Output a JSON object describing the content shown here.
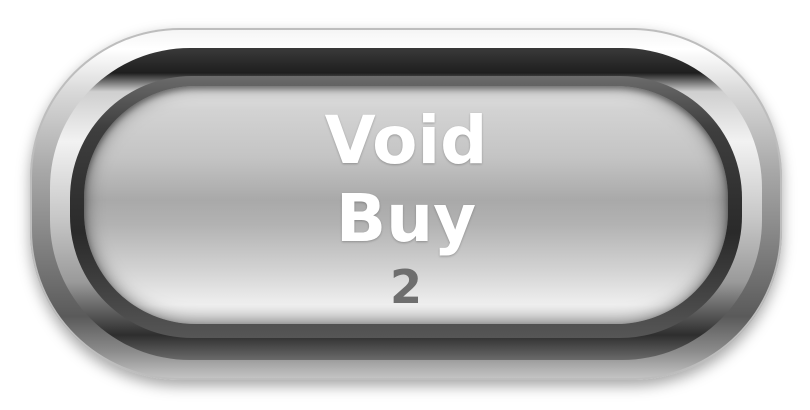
{
  "button": {
    "line1": "Void",
    "line2": "Buy",
    "count": "2"
  },
  "colors": {
    "label_text": "#ffffff",
    "count_text": "#6e6e6e",
    "chrome_light": "#f4f4f4",
    "chrome_dark": "#2a2a2a"
  }
}
